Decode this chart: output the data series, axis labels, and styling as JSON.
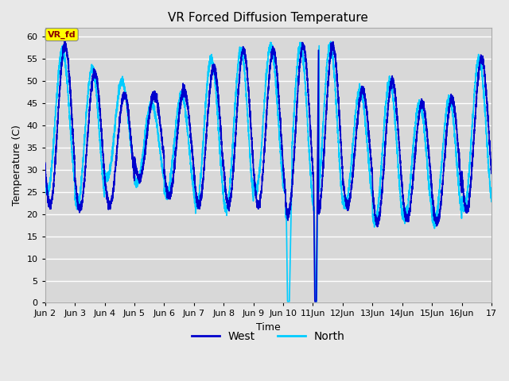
{
  "title": "VR Forced Diffusion Temperature",
  "xlabel": "Time",
  "ylabel": "Temperature (C)",
  "ylim": [
    0,
    62
  ],
  "xlim": [
    0,
    360
  ],
  "annotation_text": "VR_fd",
  "annotation_bg": "#ffff00",
  "annotation_text_color": "#8b0000",
  "west_color": "#0000cd",
  "north_color": "#00ccff",
  "bg_color": "#e8e8e8",
  "plot_bg_color": "#d8d8d8",
  "grid_color": "#ffffff",
  "tick_labels": [
    "Jun 2",
    "Jun 3",
    "Jun 4",
    "Jun 5",
    "Jun 6",
    "Jun 7",
    "Jun 8",
    "Jun 9",
    "Jun 10",
    "11Jun",
    "12Jun",
    "13Jun",
    "14Jun",
    "15Jun",
    "16Jun",
    "17"
  ],
  "tick_positions": [
    0,
    24,
    48,
    72,
    96,
    120,
    144,
    168,
    192,
    216,
    240,
    264,
    288,
    312,
    336,
    360
  ],
  "yticks": [
    0,
    5,
    10,
    15,
    20,
    25,
    30,
    35,
    40,
    45,
    50,
    55,
    60
  ],
  "figsize": [
    6.4,
    4.8
  ],
  "dpi": 100
}
